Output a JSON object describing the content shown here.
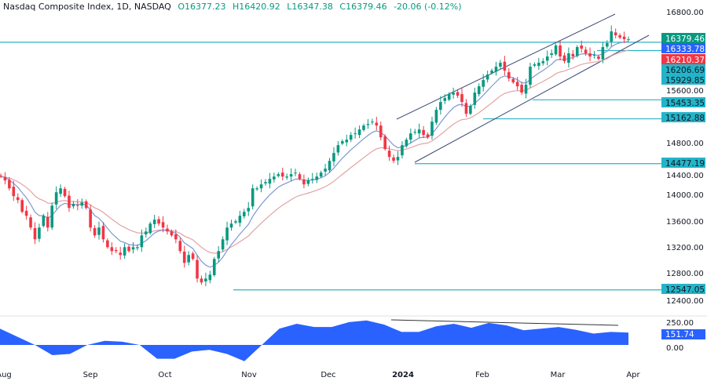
{
  "header": {
    "symbol": "Nasdaq Composite Index, 1D, NASDAQ",
    "open": "O16377.23",
    "high": "H16420.92",
    "low": "L16347.38",
    "close": "C16379.46",
    "change": "-20.06 (-0.12%)"
  },
  "colors": {
    "up": "#089981",
    "down": "#f23645",
    "fast_ma": "#7d98d4",
    "slow_ma": "#e3a3a3",
    "levels": "#2fb3c4",
    "channel": "#3b4a78",
    "oscillator": "#2962ff"
  },
  "chart_data": [
    {
      "type": "candlestick",
      "title": "Nasdaq Composite Index, 1D, NASDAQ",
      "y_ticks": [
        "16800.00",
        "15600.00",
        "14800.00",
        "14400.00",
        "14000.00",
        "13600.00",
        "13200.00",
        "12800.00",
        "12400.00"
      ],
      "ylim": [
        12300,
        16900
      ],
      "x_ticks": [
        "Aug",
        "Sep",
        "Oct",
        "Nov",
        "Dec",
        "2024",
        "Feb",
        "Mar",
        "Apr"
      ],
      "closes": [
        14280,
        14220,
        14100,
        13980,
        13920,
        13740,
        13680,
        13500,
        13320,
        13500,
        13680,
        13500,
        13836,
        14040,
        14100,
        13980,
        13800,
        13860,
        13836,
        13884,
        13800,
        13500,
        13380,
        13500,
        13320,
        13200,
        13140,
        13140,
        13080,
        13200,
        13140,
        13200,
        13200,
        13380,
        13440,
        13560,
        13620,
        13560,
        13500,
        13440,
        13380,
        13320,
        13140,
        12960,
        13080,
        13020,
        12720,
        12660,
        12720,
        12780,
        13020,
        13140,
        13320,
        13500,
        13560,
        13596,
        13680,
        13740,
        13800,
        14100,
        14100,
        14160,
        14196,
        14244,
        14280,
        14316,
        14280,
        14280,
        14316,
        14340,
        14244,
        14160,
        14220,
        14244,
        14280,
        14340,
        14400,
        14520,
        14640,
        14760,
        14820,
        14844,
        14916,
        14940,
        15000,
        15060,
        15084,
        15120,
        15060,
        14880,
        14700,
        14580,
        14520,
        14580,
        14760,
        14844,
        14940,
        14964,
        15000,
        14916,
        14880,
        15120,
        15300,
        15420,
        15480,
        15540,
        15564,
        15516,
        15420,
        15240,
        15360,
        15564,
        15660,
        15756,
        15840,
        15900,
        15960,
        16020,
        15900,
        15780,
        15720,
        15660,
        15564,
        15684,
        15960,
        15996,
        16020,
        16044,
        16116,
        16164,
        16284,
        16116,
        16044,
        16164,
        16116,
        16260,
        16236,
        16164,
        16116,
        16140,
        16080,
        16260,
        16320,
        16500,
        16440,
        16404,
        16380,
        16379.46
      ],
      "last_ohlc": {
        "open": 16377.23,
        "high": 16420.92,
        "low": 16347.38,
        "close": 16379.46
      },
      "moving_averages": [
        {
          "color": "#7d98d4",
          "kind": "fast"
        },
        {
          "color": "#e3a3a3",
          "kind": "slow"
        }
      ],
      "price_tags": [
        {
          "value": "16379.46",
          "price": 16379.46,
          "color": "#089981",
          "text_color": "#ffffff"
        },
        {
          "value": "16333.78",
          "price": 16333.78,
          "color": "#2962ff",
          "text_color": "#ffffff"
        },
        {
          "value": "16210.37",
          "price": 16210.37,
          "color": "#f23645",
          "text_color": "#ffffff"
        },
        {
          "value": "16206.69",
          "price": 16206.69,
          "color": "#22b5c9",
          "text_color": "#131722"
        },
        {
          "value": "15929.85",
          "price": 15929.85,
          "color": "#22b5c9",
          "text_color": "#131722"
        },
        {
          "value": "15453.35",
          "price": 15453.35,
          "color": "#22b5c9",
          "text_color": "#131722"
        },
        {
          "value": "15162.88",
          "price": 15162.88,
          "color": "#22b5c9",
          "text_color": "#131722"
        },
        {
          "value": "14477.19",
          "price": 14477.19,
          "color": "#22b5c9",
          "text_color": "#131722"
        },
        {
          "value": "12547.05",
          "price": 12547.05,
          "color": "#22b5c9",
          "text_color": "#131722"
        }
      ],
      "horizontal_levels": [
        16333.78,
        16206.69,
        15453.35,
        15162.88,
        14477.19,
        12547.05
      ],
      "channel": {
        "upper": [
          [
            "late Dec",
            15130
          ],
          [
            "mid Mar",
            16740
          ]
        ],
        "lower": [
          [
            "early Jan",
            14477
          ],
          [
            "end Mar",
            16420
          ]
        ]
      }
    },
    {
      "type": "area",
      "y_ticks": [
        "250.00",
        "0.00"
      ],
      "last_value": "151.74",
      "values": [
        200,
        100,
        0,
        -125,
        -110,
        0,
        50,
        40,
        0,
        -170,
        -170,
        -80,
        -60,
        -110,
        -200,
        0,
        200,
        260,
        220,
        220,
        280,
        300,
        250,
        160,
        160,
        230,
        260,
        210,
        270,
        240,
        180,
        200,
        220,
        185,
        140,
        160,
        152
      ],
      "divergence_line": "declining from late Dec peak to late Mar"
    }
  ]
}
